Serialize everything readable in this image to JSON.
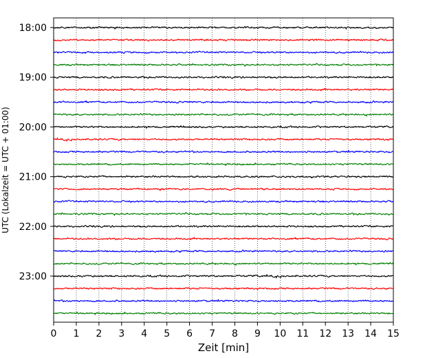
{
  "chart_data": {
    "type": "line",
    "title": "",
    "xlabel": "Zeit  [min]",
    "ylabel": "UTC (Lokalzeit = UTC + 01:00)",
    "xlim": [
      0,
      15
    ],
    "x_ticks": [
      "0",
      "1",
      "2",
      "3",
      "4",
      "5",
      "6",
      "7",
      "8",
      "9",
      "10",
      "11",
      "12",
      "13",
      "14",
      "15"
    ],
    "y_ticks": [
      "18:00",
      "19:00",
      "20:00",
      "21:00",
      "22:00",
      "23:00"
    ],
    "grid": "vertical dotted at each minute",
    "trace_interval_min": 15,
    "trace_colors": [
      "#000000",
      "#ff0000",
      "#0000ff",
      "#008000"
    ],
    "traces": [
      {
        "start": "18:00"
      },
      {
        "start": "18:15"
      },
      {
        "start": "18:30"
      },
      {
        "start": "18:45"
      },
      {
        "start": "19:00"
      },
      {
        "start": "19:15"
      },
      {
        "start": "19:30"
      },
      {
        "start": "19:45"
      },
      {
        "start": "20:00"
      },
      {
        "start": "20:15"
      },
      {
        "start": "20:30"
      },
      {
        "start": "20:45"
      },
      {
        "start": "21:00"
      },
      {
        "start": "21:15"
      },
      {
        "start": "21:30"
      },
      {
        "start": "21:45"
      },
      {
        "start": "22:00"
      },
      {
        "start": "22:15"
      },
      {
        "start": "22:30"
      },
      {
        "start": "22:45"
      },
      {
        "start": "23:00"
      },
      {
        "start": "23:15"
      },
      {
        "start": "23:30"
      },
      {
        "start": "23:45"
      }
    ]
  }
}
